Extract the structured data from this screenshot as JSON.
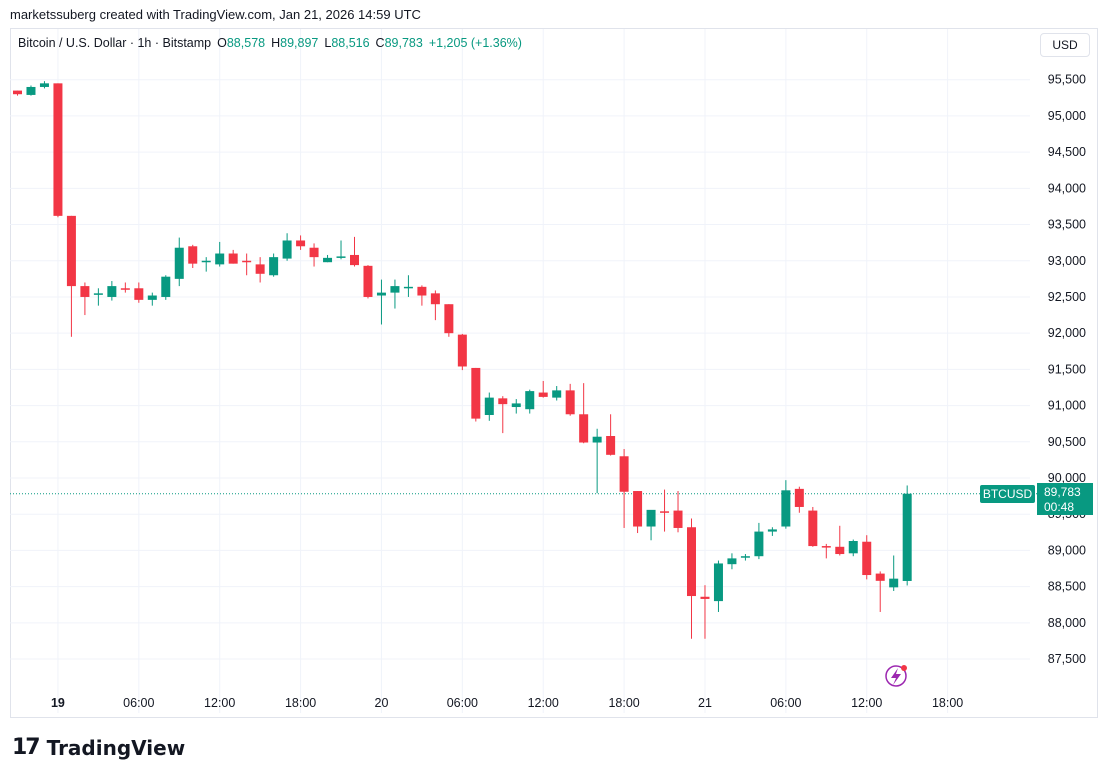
{
  "header": {
    "caption": "marketssuberg created with TradingView.com, Jan 21, 2026 14:59 UTC"
  },
  "legend": {
    "symbol": "Bitcoin / U.S. Dollar · 1h · Bitstamp",
    "o_label": "O",
    "o_value": "88,578",
    "h_label": "H",
    "h_value": "89,897",
    "l_label": "L",
    "l_value": "88,516",
    "c_label": "C",
    "c_value": "89,783",
    "change": "+1,205 (+1.36%)"
  },
  "currency_button": "USD",
  "last_price": {
    "symbol": "BTCUSD",
    "price": "89,783",
    "countdown": "00:48",
    "value": 89783
  },
  "footer": {
    "logo_text": "TradingView",
    "logo_mark": "17"
  },
  "colors": {
    "up": "#089981",
    "down": "#F23645",
    "grid": "#f0f3fa",
    "text": "#131722"
  },
  "icons": {
    "bottom_right": "lightning-badge-icon"
  },
  "chart_data": {
    "type": "candlestick",
    "symbol": "BTCUSD",
    "interval": "1h",
    "ylim": [
      87100,
      95800
    ],
    "y_ticks": [
      87500,
      88000,
      88500,
      89000,
      89500,
      90000,
      90500,
      91000,
      91500,
      92000,
      92500,
      93000,
      93500,
      94000,
      94500,
      95000,
      95500
    ],
    "y_tick_labels": [
      "87,500",
      "88,000",
      "88,500",
      "89,000",
      "89,500",
      "90,000",
      "90,500",
      "91,000",
      "91,500",
      "92,000",
      "92,500",
      "93,000",
      "93,500",
      "94,000",
      "94,500",
      "95,000",
      "95,500"
    ],
    "x_ticks": [
      {
        "label": "19",
        "bold": true,
        "index": 3
      },
      {
        "label": "06:00",
        "bold": false,
        "index": 9
      },
      {
        "label": "12:00",
        "bold": false,
        "index": 15
      },
      {
        "label": "18:00",
        "bold": false,
        "index": 21
      },
      {
        "label": "20",
        "bold": false,
        "index": 27
      },
      {
        "label": "06:00",
        "bold": false,
        "index": 33
      },
      {
        "label": "12:00",
        "bold": false,
        "index": 39
      },
      {
        "label": "18:00",
        "bold": false,
        "index": 45
      },
      {
        "label": "21",
        "bold": false,
        "index": 51
      },
      {
        "label": "06:00",
        "bold": false,
        "index": 57
      },
      {
        "label": "12:00",
        "bold": false,
        "index": 63
      },
      {
        "label": "18:00",
        "bold": false,
        "index": 69
      }
    ],
    "x_tick_times": [
      "Jan 19 00:00",
      "Jan 19 06:00",
      "Jan 19 12:00",
      "Jan 19 18:00",
      "Jan 20 00:00",
      "Jan 20 06:00",
      "Jan 20 12:00",
      "Jan 20 18:00",
      "Jan 21 00:00",
      "Jan 21 06:00",
      "Jan 21 12:00",
      "Jan 21 18:00"
    ],
    "candles": [
      {
        "o": 95350,
        "h": 95350,
        "l": 95280,
        "c": 95300
      },
      {
        "o": 95290,
        "h": 95420,
        "l": 95280,
        "c": 95400
      },
      {
        "o": 95400,
        "h": 95480,
        "l": 95380,
        "c": 95450
      },
      {
        "o": 95450,
        "h": 95450,
        "l": 93600,
        "c": 93620
      },
      {
        "o": 93620,
        "h": 93620,
        "l": 91950,
        "c": 92650
      },
      {
        "o": 92650,
        "h": 92700,
        "l": 92250,
        "c": 92500
      },
      {
        "o": 92530,
        "h": 92620,
        "l": 92380,
        "c": 92550
      },
      {
        "o": 92500,
        "h": 92720,
        "l": 92450,
        "c": 92650
      },
      {
        "o": 92620,
        "h": 92700,
        "l": 92560,
        "c": 92600
      },
      {
        "o": 92620,
        "h": 92700,
        "l": 92420,
        "c": 92460
      },
      {
        "o": 92460,
        "h": 92560,
        "l": 92380,
        "c": 92520
      },
      {
        "o": 92500,
        "h": 92800,
        "l": 92460,
        "c": 92780
      },
      {
        "o": 92750,
        "h": 93320,
        "l": 92650,
        "c": 93180
      },
      {
        "o": 93200,
        "h": 93220,
        "l": 92900,
        "c": 92960
      },
      {
        "o": 92980,
        "h": 93050,
        "l": 92850,
        "c": 93000
      },
      {
        "o": 92950,
        "h": 93260,
        "l": 92920,
        "c": 93100
      },
      {
        "o": 93100,
        "h": 93150,
        "l": 92960,
        "c": 92960
      },
      {
        "o": 93000,
        "h": 93100,
        "l": 92800,
        "c": 92980
      },
      {
        "o": 92950,
        "h": 93050,
        "l": 92700,
        "c": 92820
      },
      {
        "o": 92800,
        "h": 93100,
        "l": 92780,
        "c": 93050
      },
      {
        "o": 93030,
        "h": 93380,
        "l": 93000,
        "c": 93280
      },
      {
        "o": 93280,
        "h": 93350,
        "l": 93150,
        "c": 93200
      },
      {
        "o": 93180,
        "h": 93240,
        "l": 92920,
        "c": 93050
      },
      {
        "o": 92980,
        "h": 93080,
        "l": 92980,
        "c": 93040
      },
      {
        "o": 93040,
        "h": 93280,
        "l": 93020,
        "c": 93060
      },
      {
        "o": 93080,
        "h": 93330,
        "l": 92920,
        "c": 92940
      },
      {
        "o": 92930,
        "h": 92940,
        "l": 92480,
        "c": 92500
      },
      {
        "o": 92520,
        "h": 92740,
        "l": 92120,
        "c": 92560
      },
      {
        "o": 92560,
        "h": 92740,
        "l": 92340,
        "c": 92650
      },
      {
        "o": 92640,
        "h": 92800,
        "l": 92500,
        "c": 92640
      },
      {
        "o": 92640,
        "h": 92660,
        "l": 92380,
        "c": 92520
      },
      {
        "o": 92550,
        "h": 92590,
        "l": 92180,
        "c": 92400
      },
      {
        "o": 92400,
        "h": 92400,
        "l": 91950,
        "c": 92000
      },
      {
        "o": 91980,
        "h": 91990,
        "l": 91490,
        "c": 91540
      },
      {
        "o": 91520,
        "h": 91520,
        "l": 90780,
        "c": 90820
      },
      {
        "o": 90870,
        "h": 91180,
        "l": 90790,
        "c": 91110
      },
      {
        "o": 91100,
        "h": 91130,
        "l": 90620,
        "c": 91020
      },
      {
        "o": 90980,
        "h": 91090,
        "l": 90890,
        "c": 91030
      },
      {
        "o": 90950,
        "h": 91220,
        "l": 90890,
        "c": 91200
      },
      {
        "o": 91180,
        "h": 91340,
        "l": 91110,
        "c": 91120
      },
      {
        "o": 91110,
        "h": 91270,
        "l": 91070,
        "c": 91210
      },
      {
        "o": 91210,
        "h": 91300,
        "l": 90860,
        "c": 90880
      },
      {
        "o": 90880,
        "h": 91310,
        "l": 90480,
        "c": 90490
      },
      {
        "o": 90490,
        "h": 90680,
        "l": 89790,
        "c": 90570
      },
      {
        "o": 90580,
        "h": 90880,
        "l": 90310,
        "c": 90320
      },
      {
        "o": 90300,
        "h": 90400,
        "l": 89310,
        "c": 89810
      },
      {
        "o": 89820,
        "h": 89820,
        "l": 89240,
        "c": 89330
      },
      {
        "o": 89330,
        "h": 89510,
        "l": 89140,
        "c": 89560
      },
      {
        "o": 89540,
        "h": 89840,
        "l": 89260,
        "c": 89520
      },
      {
        "o": 89550,
        "h": 89820,
        "l": 89250,
        "c": 89310
      },
      {
        "o": 89320,
        "h": 89440,
        "l": 87780,
        "c": 88370
      },
      {
        "o": 88360,
        "h": 88520,
        "l": 87780,
        "c": 88330
      },
      {
        "o": 88300,
        "h": 88860,
        "l": 88150,
        "c": 88820
      },
      {
        "o": 88810,
        "h": 88960,
        "l": 88740,
        "c": 88890
      },
      {
        "o": 88900,
        "h": 88950,
        "l": 88860,
        "c": 88920
      },
      {
        "o": 88920,
        "h": 89380,
        "l": 88880,
        "c": 89260
      },
      {
        "o": 89260,
        "h": 89320,
        "l": 89200,
        "c": 89290
      },
      {
        "o": 89330,
        "h": 89970,
        "l": 89300,
        "c": 89830
      },
      {
        "o": 89850,
        "h": 89880,
        "l": 89520,
        "c": 89600
      },
      {
        "o": 89550,
        "h": 89600,
        "l": 89050,
        "c": 89060
      },
      {
        "o": 89060,
        "h": 89090,
        "l": 88890,
        "c": 89050
      },
      {
        "o": 89050,
        "h": 89340,
        "l": 88930,
        "c": 88950
      },
      {
        "o": 88960,
        "h": 89150,
        "l": 88920,
        "c": 89130
      },
      {
        "o": 89120,
        "h": 89210,
        "l": 88600,
        "c": 88660
      },
      {
        "o": 88680,
        "h": 88710,
        "l": 88150,
        "c": 88580
      },
      {
        "o": 88490,
        "h": 88930,
        "l": 88440,
        "c": 88610
      },
      {
        "o": 88578,
        "h": 89897,
        "l": 88516,
        "c": 89783
      }
    ]
  }
}
